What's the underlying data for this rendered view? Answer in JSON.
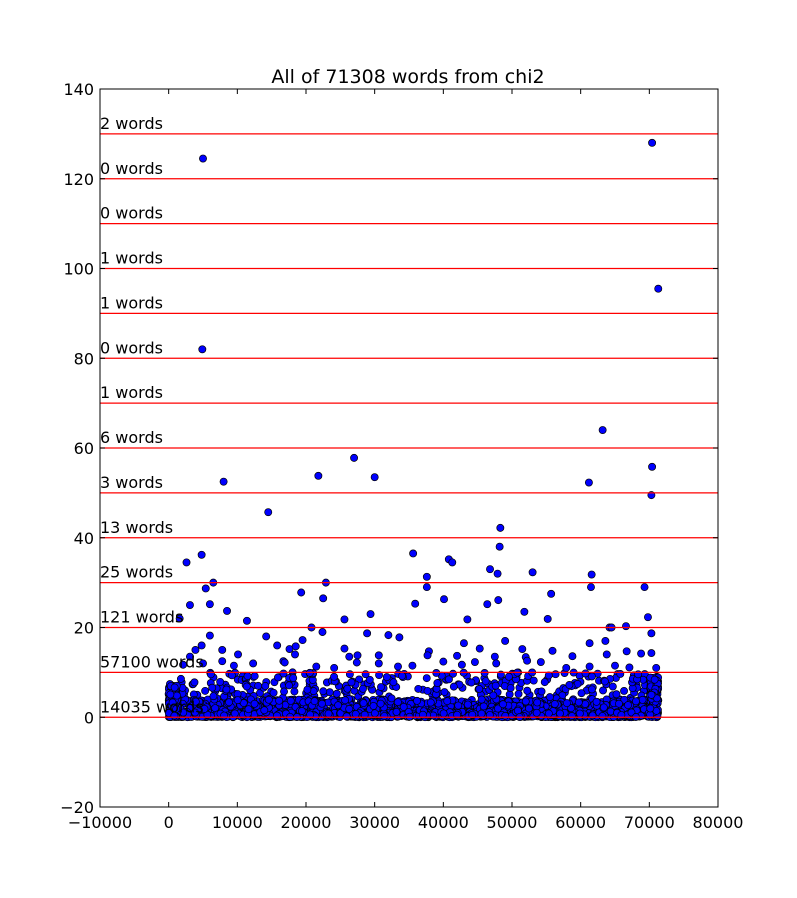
{
  "chart_data": {
    "type": "scatter",
    "title": "All of 71308 words from chi2",
    "xlabel": "",
    "ylabel": "",
    "xlim": [
      -10000,
      80000
    ],
    "ylim": [
      -20,
      140
    ],
    "x_ticks": [
      "−10000",
      "0",
      "10000",
      "20000",
      "30000",
      "40000",
      "50000",
      "60000",
      "70000",
      "80000"
    ],
    "x_tick_values": [
      -10000,
      0,
      10000,
      20000,
      30000,
      40000,
      50000,
      60000,
      70000,
      80000
    ],
    "y_ticks": [
      "−20",
      "0",
      "20",
      "40",
      "60",
      "80",
      "100",
      "120",
      "140"
    ],
    "y_tick_values": [
      -20,
      0,
      20,
      40,
      60,
      80,
      100,
      120,
      140
    ],
    "grid": false,
    "marker_color": "#0000ff",
    "line_color": "#ff0000",
    "bands": [
      {
        "y": 0,
        "label": "14035 words"
      },
      {
        "y": 10,
        "label": "57100 words"
      },
      {
        "y": 20,
        "label": "121 words"
      },
      {
        "y": 30,
        "label": "25 words"
      },
      {
        "y": 40,
        "label": "13 words"
      },
      {
        "y": 50,
        "label": "3 words"
      },
      {
        "y": 60,
        "label": "6 words"
      },
      {
        "y": 70,
        "label": "1 words"
      },
      {
        "y": 80,
        "label": "0 words"
      },
      {
        "y": 90,
        "label": "1 words"
      },
      {
        "y": 100,
        "label": "1 words"
      },
      {
        "y": 110,
        "label": "0 words"
      },
      {
        "y": 120,
        "label": "0 words"
      },
      {
        "y": 130,
        "label": "2 words"
      }
    ],
    "series": [
      {
        "points": [
          [
            5000,
            124.5
          ],
          [
            70400,
            128
          ],
          [
            71300,
            95.5
          ],
          [
            4900,
            82
          ],
          [
            63200,
            64
          ],
          [
            27000,
            57.8
          ],
          [
            70400,
            55.8
          ],
          [
            21800,
            53.8
          ],
          [
            30000,
            53.5
          ],
          [
            8000,
            52.5
          ],
          [
            61200,
            52.3
          ],
          [
            70300,
            49.5
          ],
          [
            14500,
            45.7
          ],
          [
            48300,
            42.2
          ],
          [
            48200,
            38
          ],
          [
            35600,
            36.5
          ],
          [
            4800,
            36.2
          ],
          [
            40800,
            35.2
          ],
          [
            41300,
            34.5
          ],
          [
            2600,
            34.5
          ],
          [
            46800,
            33
          ],
          [
            53000,
            32.3
          ],
          [
            47900,
            32
          ],
          [
            61600,
            31.8
          ],
          [
            37600,
            31.3
          ],
          [
            6500,
            30
          ],
          [
            22900,
            30
          ],
          [
            61500,
            29
          ],
          [
            69300,
            29
          ],
          [
            37600,
            29
          ],
          [
            5400,
            28.7
          ],
          [
            19300,
            27.8
          ],
          [
            55700,
            27.5
          ],
          [
            22500,
            26.5
          ],
          [
            40100,
            26.3
          ],
          [
            48000,
            26.1
          ],
          [
            3100,
            25
          ],
          [
            6000,
            25.2
          ],
          [
            35900,
            25.3
          ],
          [
            46400,
            25.2
          ],
          [
            8500,
            23.7
          ],
          [
            51800,
            23.5
          ],
          [
            29400,
            23
          ],
          [
            69800,
            22.3
          ],
          [
            1600,
            22
          ],
          [
            25600,
            21.8
          ],
          [
            55200,
            21.9
          ],
          [
            43500,
            21.8
          ],
          [
            11400,
            21.5
          ],
          [
            66600,
            20.3
          ],
          [
            64200,
            20
          ],
          [
            64500,
            20
          ],
          [
            20800,
            20
          ],
          [
            22400,
            19
          ],
          [
            28900,
            18.7
          ],
          [
            14200,
            18
          ],
          [
            6000,
            18.2
          ],
          [
            33600,
            17.8
          ],
          [
            32000,
            18.3
          ],
          [
            70300,
            18.7
          ],
          [
            19500,
            17.2
          ],
          [
            49000,
            17
          ],
          [
            61300,
            16.5
          ],
          [
            15800,
            16
          ],
          [
            43000,
            16.5
          ],
          [
            63600,
            17
          ],
          [
            4800,
            16
          ],
          [
            25600,
            15.3
          ],
          [
            45300,
            15.3
          ],
          [
            51500,
            15.2
          ],
          [
            3900,
            15
          ],
          [
            7800,
            15
          ],
          [
            17600,
            15.2
          ],
          [
            18500,
            15.8
          ],
          [
            37900,
            14.7
          ],
          [
            55900,
            14.8
          ],
          [
            66700,
            14.7
          ],
          [
            3100,
            13.5
          ],
          [
            7800,
            12.5
          ],
          [
            10100,
            14
          ],
          [
            16700,
            12.5
          ],
          [
            18400,
            14
          ],
          [
            26300,
            13.5
          ],
          [
            27500,
            13.8
          ],
          [
            30600,
            13.8
          ],
          [
            37700,
            13.8
          ],
          [
            42000,
            13.7
          ],
          [
            47500,
            13.5
          ],
          [
            52000,
            13.4
          ],
          [
            58800,
            13.6
          ],
          [
            63800,
            14
          ],
          [
            68800,
            14.2
          ],
          [
            70300,
            14.3
          ],
          [
            2100,
            11.7
          ],
          [
            5000,
            12
          ],
          [
            9500,
            11.5
          ],
          [
            12300,
            12
          ],
          [
            16900,
            12.2
          ],
          [
            21500,
            11.3
          ],
          [
            24100,
            11
          ],
          [
            27400,
            12.2
          ],
          [
            30600,
            12
          ],
          [
            33400,
            11.3
          ],
          [
            35500,
            11.5
          ],
          [
            40000,
            12.4
          ],
          [
            42700,
            11.7
          ],
          [
            44600,
            12.3
          ],
          [
            47700,
            12
          ],
          [
            52200,
            12.6
          ],
          [
            54200,
            12.3
          ],
          [
            57900,
            11
          ],
          [
            61300,
            11.3
          ],
          [
            65000,
            11.5
          ],
          [
            67100,
            11.1
          ],
          [
            71000,
            11
          ]
        ],
        "dense_band": {
          "x_range": [
            0,
            71308
          ],
          "y_range": [
            0,
            10
          ]
        }
      }
    ]
  }
}
